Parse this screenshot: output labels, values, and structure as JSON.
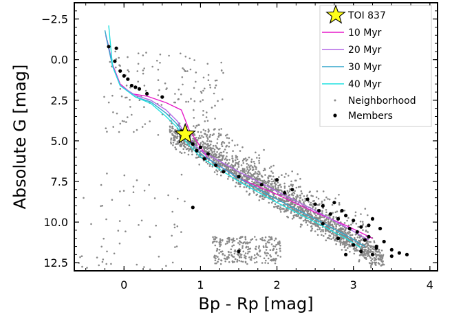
{
  "chart_data": {
    "type": "scatter",
    "title": "",
    "xlabel": "Bp - Rp [mag]",
    "ylabel": "Absolute G [mag]",
    "xlim": [
      -0.65,
      4.1
    ],
    "ylim": [
      13.0,
      -3.5
    ],
    "y_inverted": true,
    "grid": false,
    "legend_position": "top-right",
    "x_ticks": [
      {
        "value": 0,
        "label": "0"
      },
      {
        "value": 1,
        "label": "1"
      },
      {
        "value": 2,
        "label": "2"
      },
      {
        "value": 3,
        "label": "3"
      },
      {
        "value": 4,
        "label": "4"
      }
    ],
    "y_ticks": [
      {
        "value": -2.5,
        "label": "−2.5"
      },
      {
        "value": 0.0,
        "label": "0.0"
      },
      {
        "value": 2.5,
        "label": "2.5"
      },
      {
        "value": 5.0,
        "label": "5.0"
      },
      {
        "value": 7.5,
        "label": "7.5"
      },
      {
        "value": 10.0,
        "label": "10.0"
      },
      {
        "value": 12.5,
        "label": "12.5"
      }
    ],
    "colors": {
      "iso_10": "#e619c8",
      "iso_20": "#b266e6",
      "iso_30": "#33a6cc",
      "iso_40": "#1fe0e0",
      "neighborhood": "#888888",
      "members": "#000000",
      "star": "#ffff1a"
    },
    "legend": [
      {
        "label": "TOI 837",
        "marker": "star"
      },
      {
        "label": "10 Myr",
        "marker": "line",
        "color": "#e619c8"
      },
      {
        "label": "20 Myr",
        "marker": "line",
        "color": "#b266e6"
      },
      {
        "label": "30 Myr",
        "marker": "line",
        "color": "#33a6cc"
      },
      {
        "label": "40 Myr",
        "marker": "line",
        "color": "#1fe0e0"
      },
      {
        "label": "Neighborhood",
        "marker": "dot",
        "color": "#888888"
      },
      {
        "label": "Members",
        "marker": "dot",
        "color": "#000000"
      }
    ],
    "series": [
      {
        "name": "10 Myr",
        "kind": "line",
        "color": "#e619c8",
        "x": [
          -0.22,
          -0.15,
          -0.05,
          0.1,
          0.3,
          0.55,
          0.75,
          0.85,
          1.1,
          1.5,
          2.0,
          2.5,
          2.9,
          3.25
        ],
        "y": [
          -1.2,
          0.3,
          1.5,
          2.1,
          2.25,
          2.65,
          3.1,
          4.3,
          6.1,
          7.3,
          8.3,
          9.4,
          10.2,
          11.0
        ]
      },
      {
        "name": "20 Myr",
        "kind": "line",
        "color": "#b266e6",
        "x": [
          -0.24,
          -0.15,
          -0.05,
          0.15,
          0.35,
          0.55,
          0.7,
          0.8,
          1.0,
          1.5,
          2.0,
          2.5,
          2.9,
          3.2
        ],
        "y": [
          -1.5,
          0.4,
          1.6,
          2.2,
          2.5,
          3.1,
          3.8,
          4.6,
          5.6,
          6.9,
          8.1,
          9.3,
          10.3,
          11.1
        ]
      },
      {
        "name": "30 Myr",
        "kind": "line",
        "color": "#33a6cc",
        "x": [
          -0.25,
          -0.15,
          -0.05,
          0.15,
          0.35,
          0.55,
          0.7,
          0.8,
          1.0,
          1.5,
          2.0,
          2.5,
          2.9,
          3.15
        ],
        "y": [
          -1.8,
          0.4,
          1.6,
          2.3,
          2.6,
          3.3,
          4.0,
          4.8,
          5.8,
          7.3,
          8.6,
          9.8,
          10.8,
          11.5
        ]
      },
      {
        "name": "40 Myr",
        "kind": "line",
        "color": "#1fe0e0",
        "x": [
          -0.2,
          -0.15,
          -0.05,
          0.15,
          0.35,
          0.55,
          0.7,
          0.8,
          1.0,
          1.5,
          2.0,
          2.5,
          2.9,
          3.1
        ],
        "y": [
          -2.1,
          0.4,
          1.6,
          2.3,
          2.7,
          3.5,
          4.2,
          5.0,
          6.0,
          7.5,
          8.8,
          10.0,
          11.0,
          11.6
        ]
      },
      {
        "name": "Members",
        "kind": "scatter",
        "color": "#000000",
        "x": [
          -0.2,
          -0.1,
          -0.05,
          -0.12,
          0.0,
          0.05,
          0.1,
          0.15,
          0.2,
          0.3,
          0.5,
          0.75,
          0.85,
          0.9,
          0.95,
          1.0,
          1.05,
          1.1,
          1.2,
          1.3,
          1.5,
          1.8,
          2.0,
          2.1,
          2.2,
          2.4,
          2.5,
          2.55,
          2.6,
          2.7,
          2.75,
          2.8,
          2.85,
          2.9,
          2.95,
          3.0,
          3.05,
          3.1,
          3.15,
          3.2,
          3.25,
          3.3,
          3.35,
          3.4,
          3.5,
          3.6,
          3.7,
          3.25,
          3.0,
          2.8,
          2.6,
          2.9,
          3.1,
          3.3,
          3.5,
          3.2,
          1.5,
          0.9
        ],
        "y": [
          -0.8,
          -0.7,
          0.7,
          0.1,
          1.0,
          1.2,
          1.6,
          1.7,
          1.8,
          2.1,
          2.3,
          4.4,
          4.6,
          5.2,
          5.6,
          5.4,
          6.1,
          5.8,
          6.5,
          6.9,
          7.2,
          7.7,
          7.4,
          8.2,
          8.0,
          8.6,
          8.9,
          9.3,
          9.0,
          9.5,
          8.8,
          9.8,
          9.3,
          9.6,
          10.4,
          9.9,
          10.6,
          10.3,
          11.1,
          10.9,
          9.8,
          11.6,
          10.4,
          11.2,
          11.7,
          11.9,
          12.0,
          12.0,
          11.4,
          11.0,
          10.1,
          12.0,
          11.8,
          11.5,
          12.1,
          10.2,
          11.8,
          9.1
        ]
      },
      {
        "name": "TOI 837",
        "kind": "star",
        "color": "#ffff1a",
        "x": [
          0.8
        ],
        "y": [
          4.6
        ]
      }
    ]
  }
}
